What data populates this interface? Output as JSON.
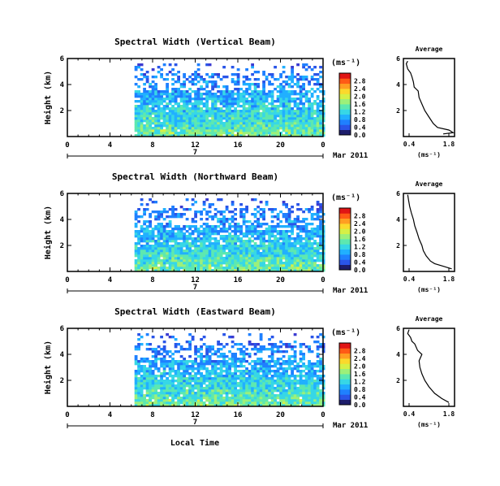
{
  "figure": {
    "x_axis_label": "Local Time",
    "date_label": "Mar 2011",
    "day_label": "7",
    "units_label": "(ms⁻¹)",
    "avg_title": "Average",
    "avg_xlabel": "(ms⁻¹)"
  },
  "colormap": [
    "#3b3bd1",
    "#2a55e8",
    "#1f80ff",
    "#21b0ff",
    "#37d7e6",
    "#5de8b0",
    "#9cf07a",
    "#d6f046",
    "#fbd92c",
    "#ff9e22",
    "#ff5a16",
    "#e01515"
  ],
  "chart_data": [
    {
      "type": "heatmap",
      "title": "Spectral Width (Vertical Beam)",
      "xlabel": "Local Time",
      "ylabel": "Height (km)",
      "xlim": [
        0,
        24
      ],
      "ylim": [
        0,
        6
      ],
      "x_ticks": [
        "0",
        "4",
        "8",
        "12",
        "16",
        "20",
        "0"
      ],
      "y_ticks": [
        "2",
        "4",
        "6"
      ],
      "data_start_hour": 6.3,
      "colorbar": {
        "label": "(ms⁻¹)",
        "ticks": [
          "0.0",
          "0.4",
          "0.8",
          "1.2",
          "1.6",
          "2.0",
          "2.4",
          "2.8"
        ],
        "range": [
          0,
          3.0
        ]
      },
      "profile": {
        "title": "Average",
        "xlabel": "(ms⁻¹)",
        "x_ticks": [
          "0.4",
          "1.8"
        ],
        "y_ticks": [
          "2",
          "4",
          "6"
        ],
        "xlim": [
          0.2,
          2.0
        ],
        "height_km": [
          0.2,
          0.3,
          0.5,
          0.7,
          1.0,
          1.5,
          2.0,
          2.5,
          3.0,
          3.5,
          3.8,
          4.2,
          4.6,
          4.9,
          5.2,
          5.6,
          5.8
        ],
        "width_ms": [
          1.6,
          1.95,
          1.8,
          1.4,
          1.25,
          1.1,
          0.95,
          0.85,
          0.75,
          0.72,
          0.58,
          0.55,
          0.5,
          0.45,
          0.35,
          0.3,
          0.35
        ]
      }
    },
    {
      "type": "heatmap",
      "title": "Spectral Width (Northward Beam)",
      "xlabel": "Local Time",
      "ylabel": "Height (km)",
      "xlim": [
        0,
        24
      ],
      "ylim": [
        0,
        6
      ],
      "x_ticks": [
        "0",
        "4",
        "8",
        "12",
        "16",
        "20",
        "0"
      ],
      "y_ticks": [
        "2",
        "4",
        "6"
      ],
      "data_start_hour": 6.3,
      "colorbar": {
        "label": "(ms⁻¹)",
        "ticks": [
          "0.0",
          "0.4",
          "0.8",
          "1.2",
          "1.6",
          "2.0",
          "2.4",
          "2.8"
        ],
        "range": [
          0,
          3.0
        ]
      },
      "profile": {
        "title": "Average",
        "xlabel": "(ms⁻¹)",
        "x_ticks": [
          "0.4",
          "1.8"
        ],
        "y_ticks": [
          "2",
          "4",
          "6"
        ],
        "xlim": [
          0.2,
          2.0
        ],
        "height_km": [
          0.2,
          0.4,
          0.6,
          0.8,
          1.2,
          1.6,
          2.0,
          2.5,
          3.0,
          3.5,
          4.0,
          4.5,
          5.0,
          5.5,
          5.9
        ],
        "width_ms": [
          1.9,
          1.6,
          1.3,
          1.15,
          1.0,
          0.9,
          0.85,
          0.75,
          0.68,
          0.6,
          0.55,
          0.48,
          0.42,
          0.38,
          0.35
        ]
      }
    },
    {
      "type": "heatmap",
      "title": "Spectral Width (Eastward Beam)",
      "xlabel": "Local Time",
      "ylabel": "Height (km)",
      "xlim": [
        0,
        24
      ],
      "ylim": [
        0,
        6
      ],
      "x_ticks": [
        "0",
        "4",
        "8",
        "12",
        "16",
        "20",
        "0"
      ],
      "y_ticks": [
        "2",
        "4",
        "6"
      ],
      "data_start_hour": 6.3,
      "colorbar": {
        "label": "(ms⁻¹)",
        "ticks": [
          "0.0",
          "0.4",
          "0.8",
          "1.2",
          "1.6",
          "2.0",
          "2.4",
          "2.8"
        ],
        "range": [
          0,
          3.0
        ]
      },
      "profile": {
        "title": "Average",
        "xlabel": "(ms⁻¹)",
        "x_ticks": [
          "0.4",
          "1.8"
        ],
        "y_ticks": [
          "2",
          "4",
          "6"
        ],
        "xlim": [
          0.2,
          2.0
        ],
        "height_km": [
          0.3,
          0.6,
          1.0,
          1.5,
          2.0,
          2.5,
          3.0,
          3.5,
          4.0,
          4.3,
          4.8,
          5.0,
          5.3,
          5.6,
          5.9
        ],
        "width_ms": [
          1.8,
          1.55,
          1.3,
          1.1,
          0.95,
          0.85,
          0.78,
          0.75,
          0.85,
          0.7,
          0.6,
          0.5,
          0.45,
          0.35,
          0.4
        ]
      }
    }
  ]
}
